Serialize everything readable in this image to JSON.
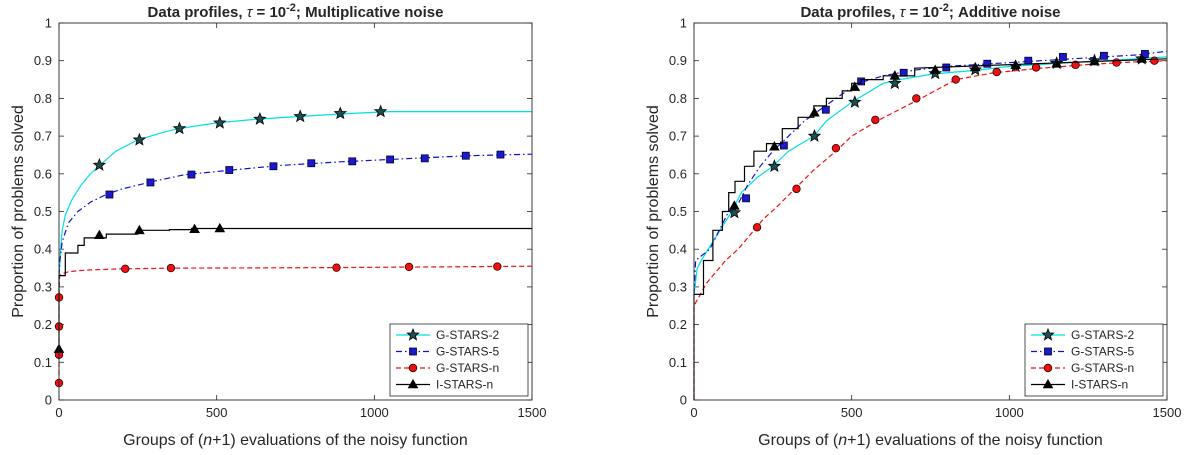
{
  "chart_data": [
    {
      "type": "line",
      "title": "Data profiles, τ = 10-2; Multiplicative noise",
      "title_parts": {
        "pre": "Data profiles, ",
        "tau": "τ",
        "eq": " = 10",
        "exp": "-2",
        "post": "; Multiplicative noise"
      },
      "xlabel": "Groups of (n+1) evaluations of the noisy function",
      "xlabel_parts": {
        "pre": "Groups of (",
        "n": "n",
        "post": "+1) evaluations of the noisy function"
      },
      "ylabel": "Proportion of problems solved",
      "xlim": [
        0,
        1500
      ],
      "ylim": [
        0,
        1
      ],
      "x_ticks": [
        "0",
        "500",
        "1000",
        "1500"
      ],
      "y_ticks": [
        "0",
        "0.1",
        "0.2",
        "0.3",
        "0.4",
        "0.5",
        "0.6",
        "0.7",
        "0.8",
        "0.9",
        "1"
      ],
      "grid": false,
      "legend_position": "bottom-right",
      "series": [
        {
          "name": "G-STARS-2",
          "color": "#00e0e0",
          "dash": "solid",
          "marker": "star",
          "x": [
            0,
            2,
            5,
            10,
            20,
            40,
            70,
            100,
            130,
            180,
            250,
            330,
            380,
            500,
            630,
            760,
            920,
            1050,
            1200,
            1500
          ],
          "y": [
            0.33,
            0.35,
            0.4,
            0.45,
            0.49,
            0.53,
            0.57,
            0.6,
            0.623,
            0.66,
            0.69,
            0.71,
            0.72,
            0.735,
            0.745,
            0.752,
            0.76,
            0.765,
            0.765,
            0.765
          ],
          "markers_x": [
            128,
            255,
            382,
            510,
            637,
            765,
            892,
            1020
          ],
          "markers_y": [
            0.623,
            0.69,
            0.72,
            0.735,
            0.745,
            0.752,
            0.76,
            0.765
          ]
        },
        {
          "name": "G-STARS-5",
          "color": "#1010cc",
          "dash": "dashdot",
          "marker": "square",
          "x": [
            0,
            3,
            10,
            30,
            60,
            100,
            150,
            200,
            300,
            400,
            550,
            700,
            900,
            1100,
            1300,
            1500
          ],
          "y": [
            0.33,
            0.37,
            0.42,
            0.47,
            0.5,
            0.525,
            0.545,
            0.56,
            0.58,
            0.598,
            0.61,
            0.622,
            0.632,
            0.64,
            0.648,
            0.652
          ],
          "markers_x": [
            160,
            290,
            420,
            540,
            680,
            800,
            930,
            1050,
            1160,
            1290,
            1400
          ],
          "markers_y": [
            0.545,
            0.577,
            0.598,
            0.61,
            0.62,
            0.628,
            0.633,
            0.638,
            0.641,
            0.648,
            0.651
          ]
        },
        {
          "name": "G-STARS-n",
          "color": "#ee1111",
          "dash": "dashed",
          "marker": "circle",
          "x": [
            0,
            0,
            0,
            0,
            2,
            10,
            30,
            60,
            100,
            200,
            400,
            800,
            1200,
            1500
          ],
          "y": [
            0.045,
            0.12,
            0.195,
            0.27,
            0.33,
            0.335,
            0.34,
            0.343,
            0.345,
            0.348,
            0.35,
            0.351,
            0.353,
            0.355
          ],
          "markers_x": [
            0,
            0,
            0,
            0,
            210,
            355,
            880,
            1110,
            1390
          ],
          "markers_y": [
            0.045,
            0.12,
            0.195,
            0.272,
            0.348,
            0.35,
            0.351,
            0.353,
            0.354
          ]
        },
        {
          "name": "I-STARS-n",
          "color": "#000000",
          "dash": "solid",
          "marker": "triangle",
          "x": [
            0,
            0,
            0,
            0,
            20,
            20,
            60,
            60,
            80,
            80,
            150,
            150,
            250,
            250,
            350,
            350,
            420,
            420,
            1500
          ],
          "y": [
            0.13,
            0.33,
            0.33,
            0.33,
            0.33,
            0.39,
            0.39,
            0.41,
            0.41,
            0.43,
            0.43,
            0.44,
            0.44,
            0.45,
            0.45,
            0.452,
            0.452,
            0.455,
            0.455
          ],
          "markers_x": [
            0,
            128,
            255,
            430,
            510
          ],
          "markers_y": [
            0.135,
            0.437,
            0.45,
            0.453,
            0.455
          ]
        }
      ]
    },
    {
      "type": "line",
      "title": "Data profiles, τ = 10-2; Additive noise",
      "title_parts": {
        "pre": "Data profiles, ",
        "tau": "τ",
        "eq": " = 10",
        "exp": "-2",
        "post": "; Additive noise"
      },
      "xlabel": "Groups of (n+1) evaluations of the noisy function",
      "xlabel_parts": {
        "pre": "Groups of (",
        "n": "n",
        "post": "+1) evaluations of the noisy function"
      },
      "ylabel": "Proportion of problems solved",
      "xlim": [
        0,
        1500
      ],
      "ylim": [
        0,
        1
      ],
      "x_ticks": [
        "0",
        "500",
        "1000",
        "1500"
      ],
      "y_ticks": [
        "0",
        "0.1",
        "0.2",
        "0.3",
        "0.4",
        "0.5",
        "0.6",
        "0.7",
        "0.8",
        "0.9",
        "1"
      ],
      "grid": false,
      "legend_position": "bottom-right",
      "series": [
        {
          "name": "G-STARS-2",
          "color": "#00e0e0",
          "dash": "solid",
          "marker": "star",
          "x": [
            0,
            10,
            30,
            60,
            90,
            120,
            150,
            200,
            250,
            300,
            380,
            420,
            500,
            600,
            650,
            760,
            900,
            1000,
            1200,
            1400,
            1500
          ],
          "y": [
            0.28,
            0.35,
            0.38,
            0.42,
            0.46,
            0.5,
            0.55,
            0.59,
            0.62,
            0.66,
            0.7,
            0.74,
            0.79,
            0.84,
            0.85,
            0.865,
            0.875,
            0.885,
            0.895,
            0.905,
            0.91
          ],
          "markers_x": [
            128,
            255,
            382,
            510,
            637,
            765,
            892,
            1020,
            1150,
            1270,
            1420
          ],
          "markers_y": [
            0.497,
            0.62,
            0.7,
            0.79,
            0.84,
            0.866,
            0.876,
            0.885,
            0.893,
            0.9,
            0.905
          ]
        },
        {
          "name": "G-STARS-5",
          "color": "#1010cc",
          "dash": "dashdot",
          "marker": "square",
          "x": [
            0,
            5,
            20,
            50,
            80,
            110,
            140,
            170,
            210,
            250,
            300,
            350,
            400,
            450,
            520,
            600,
            700,
            800,
            900,
            1000,
            1100,
            1200,
            1300,
            1400,
            1500
          ],
          "y": [
            0.28,
            0.37,
            0.38,
            0.4,
            0.45,
            0.5,
            0.52,
            0.57,
            0.62,
            0.66,
            0.7,
            0.74,
            0.77,
            0.8,
            0.84,
            0.86,
            0.875,
            0.885,
            0.89,
            0.895,
            0.9,
            0.905,
            0.91,
            0.915,
            0.925
          ],
          "markers_x": [
            165,
            285,
            418,
            530,
            665,
            800,
            930,
            1060,
            1170,
            1300,
            1430
          ],
          "markers_y": [
            0.535,
            0.675,
            0.77,
            0.845,
            0.868,
            0.882,
            0.892,
            0.9,
            0.91,
            0.913,
            0.918
          ]
        },
        {
          "name": "G-STARS-n",
          "color": "#ee1111",
          "dash": "dashed",
          "marker": "circle",
          "x": [
            0,
            0,
            20,
            40,
            70,
            100,
            140,
            180,
            220,
            260,
            320,
            380,
            450,
            500,
            580,
            650,
            720,
            830,
            950,
            1100,
            1250,
            1400,
            1500
          ],
          "y": [
            0.0,
            0.25,
            0.28,
            0.31,
            0.34,
            0.37,
            0.4,
            0.44,
            0.48,
            0.51,
            0.56,
            0.61,
            0.66,
            0.7,
            0.74,
            0.77,
            0.8,
            0.85,
            0.868,
            0.88,
            0.89,
            0.897,
            0.9
          ],
          "markers_x": [
            200,
            325,
            450,
            575,
            705,
            830,
            960,
            1085,
            1210,
            1340,
            1460
          ],
          "markers_y": [
            0.458,
            0.56,
            0.668,
            0.743,
            0.8,
            0.85,
            0.87,
            0.882,
            0.889,
            0.895,
            0.9
          ]
        },
        {
          "name": "I-STARS-n",
          "color": "#000000",
          "dash": "solid",
          "marker": "triangle",
          "x": [
            0,
            0,
            0,
            30,
            30,
            60,
            60,
            90,
            90,
            110,
            110,
            130,
            130,
            160,
            160,
            190,
            190,
            230,
            230,
            280,
            280,
            330,
            330,
            380,
            380,
            420,
            420,
            470,
            470,
            500,
            500,
            530,
            530,
            600,
            600,
            700,
            700,
            1500
          ],
          "y": [
            0.0,
            0.28,
            0.28,
            0.28,
            0.37,
            0.37,
            0.45,
            0.45,
            0.5,
            0.5,
            0.55,
            0.55,
            0.58,
            0.58,
            0.62,
            0.62,
            0.66,
            0.66,
            0.68,
            0.68,
            0.72,
            0.72,
            0.75,
            0.75,
            0.78,
            0.78,
            0.8,
            0.8,
            0.82,
            0.82,
            0.84,
            0.84,
            0.85,
            0.85,
            0.86,
            0.86,
            0.88,
            0.905
          ],
          "markers_x": [
            128,
            255,
            382,
            510,
            637,
            765,
            892,
            1020,
            1150,
            1270,
            1420
          ],
          "markers_y": [
            0.515,
            0.672,
            0.762,
            0.83,
            0.86,
            0.875,
            0.882,
            0.888,
            0.892,
            0.898,
            0.905
          ]
        }
      ]
    }
  ]
}
